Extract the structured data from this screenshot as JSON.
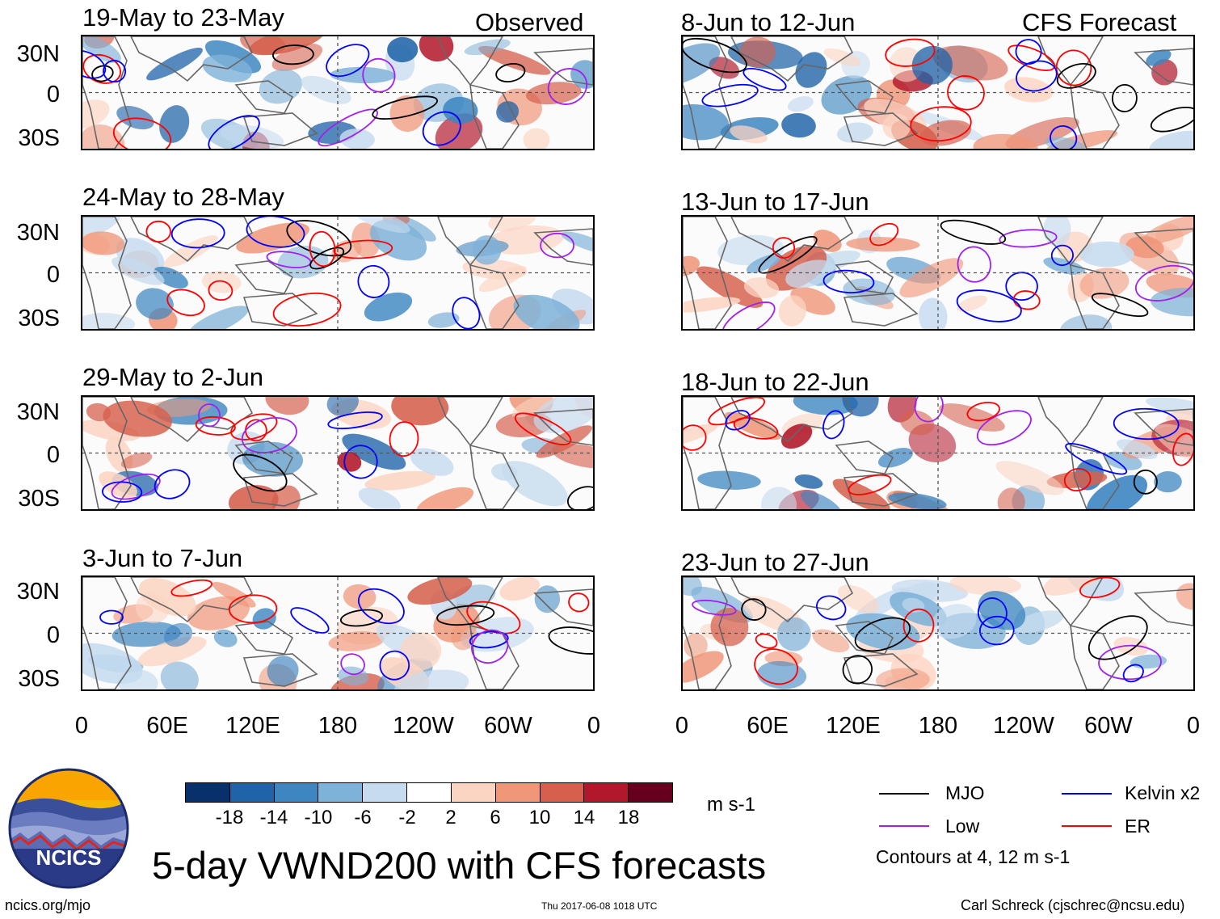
{
  "panels": [
    {
      "title": "19-May to 23-May",
      "label": "Observed"
    },
    {
      "title": "8-Jun to 12-Jun",
      "label": "CFS Forecast"
    },
    {
      "title": "24-May to 28-May"
    },
    {
      "title": "13-Jun to 17-Jun"
    },
    {
      "title": "29-May to 2-Jun"
    },
    {
      "title": "18-Jun to 22-Jun"
    },
    {
      "title": "3-Jun to 7-Jun"
    },
    {
      "title": "23-Jun to 27-Jun"
    }
  ],
  "lat_labels": [
    "30N",
    "0",
    "30S"
  ],
  "lon_labels": [
    "0",
    "60E",
    "120E",
    "180",
    "120W",
    "60W",
    "0"
  ],
  "colorbar": {
    "colors": [
      "#08306b",
      "#1f63a8",
      "#3d86c1",
      "#7fb2d8",
      "#c6dbef",
      "#ffffff",
      "#fcd4c2",
      "#f0977a",
      "#d6604d",
      "#b2182b",
      "#67001f"
    ],
    "ticks": [
      "-18",
      "-14",
      "-10",
      "-6",
      "-2",
      "2",
      "6",
      "10",
      "14",
      "18"
    ],
    "units": "m s-1"
  },
  "legend": {
    "items": [
      {
        "label": "MJO",
        "color": "#000000"
      },
      {
        "label": "Kelvin x2",
        "color": "#0000ff"
      },
      {
        "label": "Low",
        "color": "#a020f0"
      },
      {
        "label": "ER",
        "color": "#ff0000"
      }
    ],
    "note": "Contours at 4, 12 m s-1"
  },
  "logo": {
    "text": "NCICS"
  },
  "main_title": "5-day VWND200 with CFS forecasts",
  "footer": {
    "url": "ncics.org/mjo",
    "timestamp": "Thu 2017-06-08 1018 UTC",
    "author": "Carl Schreck (cjschrec@ncsu.edu)"
  }
}
